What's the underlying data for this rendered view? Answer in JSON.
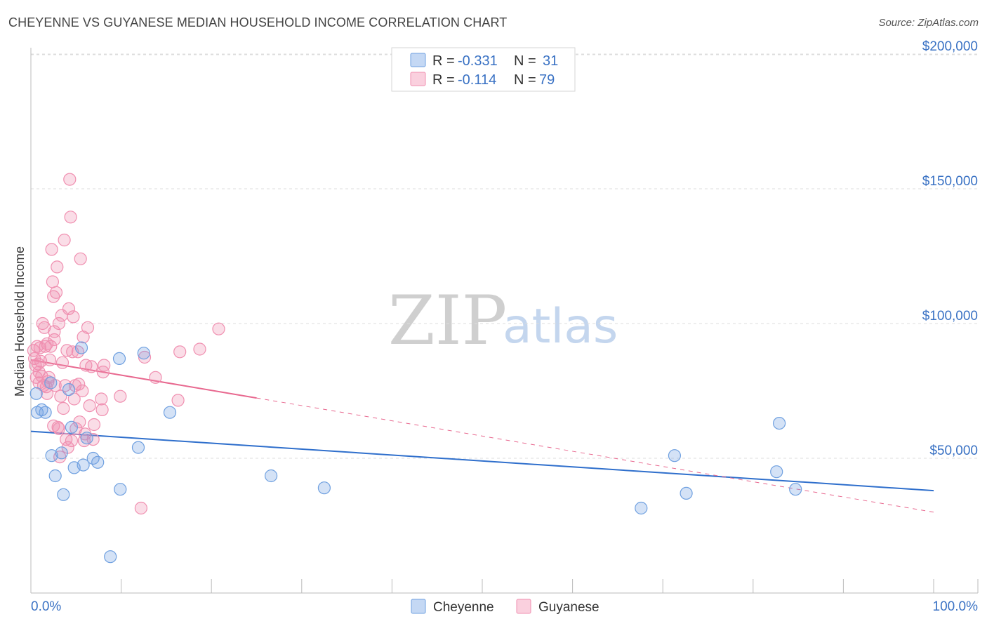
{
  "header": {
    "title": "CHEYENNE VS GUYANESE MEDIAN HOUSEHOLD INCOME CORRELATION CHART",
    "source": "Source: ZipAtlas.com"
  },
  "watermark": {
    "zip": "ZIP",
    "atlas": "atlas"
  },
  "legend": {
    "rows": [
      {
        "r_label": "R =",
        "r_value": "-0.331",
        "n_label": "N =",
        "n_value": "31",
        "color": "#6fa0e0"
      },
      {
        "r_label": "R =",
        "r_value": "-0.114",
        "n_label": "N =",
        "n_value": "79",
        "color": "#f08fb0"
      }
    ]
  },
  "bottom_legend": [
    {
      "label": "Cheyenne",
      "color": "#6fa0e0"
    },
    {
      "label": "Guyanese",
      "color": "#f08fb0"
    }
  ],
  "chart_data": {
    "type": "scatter",
    "title": "CHEYENNE VS GUYANESE MEDIAN HOUSEHOLD INCOME CORRELATION CHART",
    "xlabel": "",
    "ylabel": "Median Household Income",
    "xlim": [
      0,
      100
    ],
    "ylim": [
      0,
      205000
    ],
    "x_tick_labels": {
      "min": "0.0%",
      "max": "100.0%"
    },
    "y_ticks": [
      {
        "value": 50000,
        "label": "$50,000"
      },
      {
        "value": 100000,
        "label": "$100,000"
      },
      {
        "value": 150000,
        "label": "$150,000"
      },
      {
        "value": 200000,
        "label": "$200,000"
      }
    ],
    "grid": true,
    "series": [
      {
        "name": "Cheyenne",
        "color": "#6fa0e0",
        "line_color": "#2f6fcc",
        "trend": {
          "x": [
            0,
            100
          ],
          "y": [
            60000,
            38000
          ],
          "solid_until": 100
        },
        "points": [
          [
            0.6,
            74000
          ],
          [
            0.7,
            67000
          ],
          [
            1.2,
            68000
          ],
          [
            1.6,
            67000
          ],
          [
            2.2,
            78000
          ],
          [
            2.3,
            51000
          ],
          [
            2.7,
            43500
          ],
          [
            3.4,
            52000
          ],
          [
            3.6,
            36500
          ],
          [
            4.2,
            75500
          ],
          [
            4.5,
            61500
          ],
          [
            4.8,
            46500
          ],
          [
            5.6,
            91000
          ],
          [
            5.8,
            47500
          ],
          [
            6.2,
            57500
          ],
          [
            6.9,
            50000
          ],
          [
            7.4,
            48500
          ],
          [
            8.8,
            13500
          ],
          [
            9.8,
            87000
          ],
          [
            9.9,
            38500
          ],
          [
            11.9,
            54000
          ],
          [
            12.5,
            89000
          ],
          [
            15.4,
            67000
          ],
          [
            26.6,
            43500
          ],
          [
            32.5,
            39000
          ],
          [
            67.6,
            31500
          ],
          [
            71.3,
            51000
          ],
          [
            72.6,
            37000
          ],
          [
            82.6,
            45000
          ],
          [
            82.9,
            63000
          ],
          [
            84.7,
            38500
          ]
        ]
      },
      {
        "name": "Guyanese",
        "color": "#f08fb0",
        "line_color": "#e8688f",
        "trend": {
          "x": [
            0,
            100
          ],
          "y": [
            86500,
            30000
          ],
          "solid_until": 25
        },
        "points": [
          [
            0.3,
            90000
          ],
          [
            0.4,
            87000
          ],
          [
            0.5,
            84500
          ],
          [
            0.6,
            80000
          ],
          [
            0.7,
            91500
          ],
          [
            0.8,
            85000
          ],
          [
            0.9,
            78000
          ],
          [
            1.1,
            86000
          ],
          [
            1.2,
            80500
          ],
          [
            1.3,
            100000
          ],
          [
            1.4,
            77000
          ],
          [
            1.5,
            98500
          ],
          [
            1.6,
            91500
          ],
          [
            1.7,
            76500
          ],
          [
            1.8,
            74000
          ],
          [
            1.9,
            78500
          ],
          [
            2.0,
            80000
          ],
          [
            2.1,
            86500
          ],
          [
            2.2,
            91500
          ],
          [
            2.3,
            127500
          ],
          [
            2.4,
            115500
          ],
          [
            2.5,
            110000
          ],
          [
            2.5,
            62000
          ],
          [
            2.6,
            94000
          ],
          [
            2.7,
            77000
          ],
          [
            2.8,
            111500
          ],
          [
            2.9,
            121000
          ],
          [
            3.0,
            61500
          ],
          [
            3.1,
            100000
          ],
          [
            3.2,
            50500
          ],
          [
            3.3,
            73000
          ],
          [
            3.4,
            103000
          ],
          [
            3.5,
            85500
          ],
          [
            3.6,
            68500
          ],
          [
            3.7,
            131000
          ],
          [
            3.8,
            77000
          ],
          [
            3.9,
            57000
          ],
          [
            4.0,
            90000
          ],
          [
            4.1,
            54000
          ],
          [
            4.2,
            105500
          ],
          [
            4.3,
            153500
          ],
          [
            4.4,
            139500
          ],
          [
            4.5,
            56500
          ],
          [
            4.7,
            102500
          ],
          [
            4.8,
            72000
          ],
          [
            4.9,
            77000
          ],
          [
            5.0,
            61000
          ],
          [
            5.2,
            89500
          ],
          [
            5.4,
            63500
          ],
          [
            5.5,
            124000
          ],
          [
            5.7,
            75000
          ],
          [
            5.8,
            95000
          ],
          [
            5.9,
            56500
          ],
          [
            6.1,
            84500
          ],
          [
            6.3,
            98500
          ],
          [
            6.5,
            69500
          ],
          [
            6.7,
            84000
          ],
          [
            6.9,
            57000
          ],
          [
            7.0,
            62500
          ],
          [
            7.8,
            72000
          ],
          [
            7.9,
            68000
          ],
          [
            8.1,
            84500
          ],
          [
            9.9,
            73000
          ],
          [
            12.2,
            31500
          ],
          [
            12.6,
            87500
          ],
          [
            13.8,
            80000
          ],
          [
            16.3,
            71500
          ],
          [
            16.5,
            89500
          ],
          [
            18.7,
            90500
          ],
          [
            20.8,
            98000
          ],
          [
            0.9,
            82000
          ],
          [
            1.0,
            91000
          ],
          [
            1.8,
            92500
          ],
          [
            2.6,
            97000
          ],
          [
            3.1,
            61000
          ],
          [
            4.6,
            89500
          ],
          [
            5.3,
            77500
          ],
          [
            6.0,
            59000
          ],
          [
            8.0,
            82000
          ]
        ]
      }
    ]
  }
}
